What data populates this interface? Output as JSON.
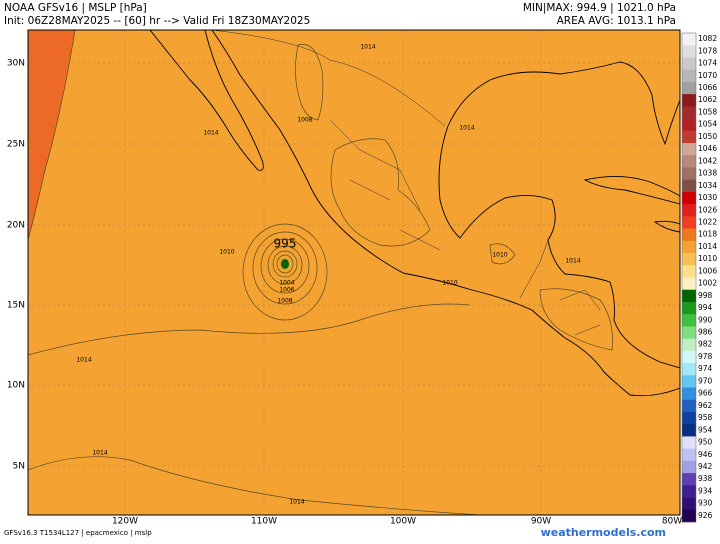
{
  "header": {
    "title": "NOAA GFSv16 | MSLP [hPa]",
    "init": "Init: 06Z28MAY2025 -- [60] hr --> Valid Fri 18Z30MAY2025",
    "minmax": "MIN|MAX: 994.9 | 1021.0 hPa",
    "avg": "AREA AVG: 1013.1 hPa"
  },
  "map": {
    "lat_labels": [
      "30N",
      "25N",
      "20N",
      "15N",
      "10N",
      "5N"
    ],
    "lon_labels": [
      "120W",
      "110W",
      "100W",
      "90W",
      "80W"
    ],
    "contour_labels": [
      "1014",
      "1014",
      "1014",
      "1014",
      "1014",
      "1014",
      "1014",
      "1008",
      "1010",
      "1010",
      "1010",
      "995",
      "1004",
      "1006",
      "1008"
    ]
  },
  "colorbar": [
    {
      "label": "1082",
      "color": "#f2f2f2"
    },
    {
      "label": "1078",
      "color": "#dedede"
    },
    {
      "label": "1074",
      "color": "#cacaca"
    },
    {
      "label": "1070",
      "color": "#b6b6b6"
    },
    {
      "label": "1066",
      "color": "#a0a0a0"
    },
    {
      "label": "1062",
      "color": "#8b1a1a"
    },
    {
      "label": "1058",
      "color": "#a52a2a"
    },
    {
      "label": "1054",
      "color": "#b22222"
    },
    {
      "label": "1050",
      "color": "#c23a30"
    },
    {
      "label": "1046",
      "color": "#d0a898"
    },
    {
      "label": "1042",
      "color": "#b88878"
    },
    {
      "label": "1038",
      "color": "#a07060"
    },
    {
      "label": "1034",
      "color": "#805048"
    },
    {
      "label": "1030",
      "color": "#cc0000"
    },
    {
      "label": "1026",
      "color": "#e02020"
    },
    {
      "label": "1022",
      "color": "#f04020"
    },
    {
      "label": "1018",
      "color": "#f07818"
    },
    {
      "label": "1014",
      "color": "#f5a030"
    },
    {
      "label": "1010",
      "color": "#f8c050"
    },
    {
      "label": "1006",
      "color": "#fce08a"
    },
    {
      "label": "1002",
      "color": "#fdf0c0"
    },
    {
      "label": "998",
      "color": "#006400"
    },
    {
      "label": "994",
      "color": "#1a9a1a"
    },
    {
      "label": "990",
      "color": "#40c040"
    },
    {
      "label": "986",
      "color": "#80dd80"
    },
    {
      "label": "982",
      "color": "#c0f0c0"
    },
    {
      "label": "978",
      "color": "#d0f8f8"
    },
    {
      "label": "974",
      "color": "#a0e8f8"
    },
    {
      "label": "970",
      "color": "#60c8f0"
    },
    {
      "label": "966",
      "color": "#3090e0"
    },
    {
      "label": "962",
      "color": "#2060c0"
    },
    {
      "label": "958",
      "color": "#1040a0"
    },
    {
      "label": "954",
      "color": "#083080"
    },
    {
      "label": "950",
      "color": "#e0e0f8"
    },
    {
      "label": "946",
      "color": "#c0c0f0"
    },
    {
      "label": "942",
      "color": "#a0a0e0"
    },
    {
      "label": "938",
      "color": "#6040b0"
    },
    {
      "label": "934",
      "color": "#402090"
    },
    {
      "label": "930",
      "color": "#301070"
    },
    {
      "label": "926",
      "color": "#200050"
    }
  ],
  "footer": {
    "left": "GFSv16.3 T1534L127 | epacmexico | mslp",
    "right": "weathermodels.com"
  }
}
